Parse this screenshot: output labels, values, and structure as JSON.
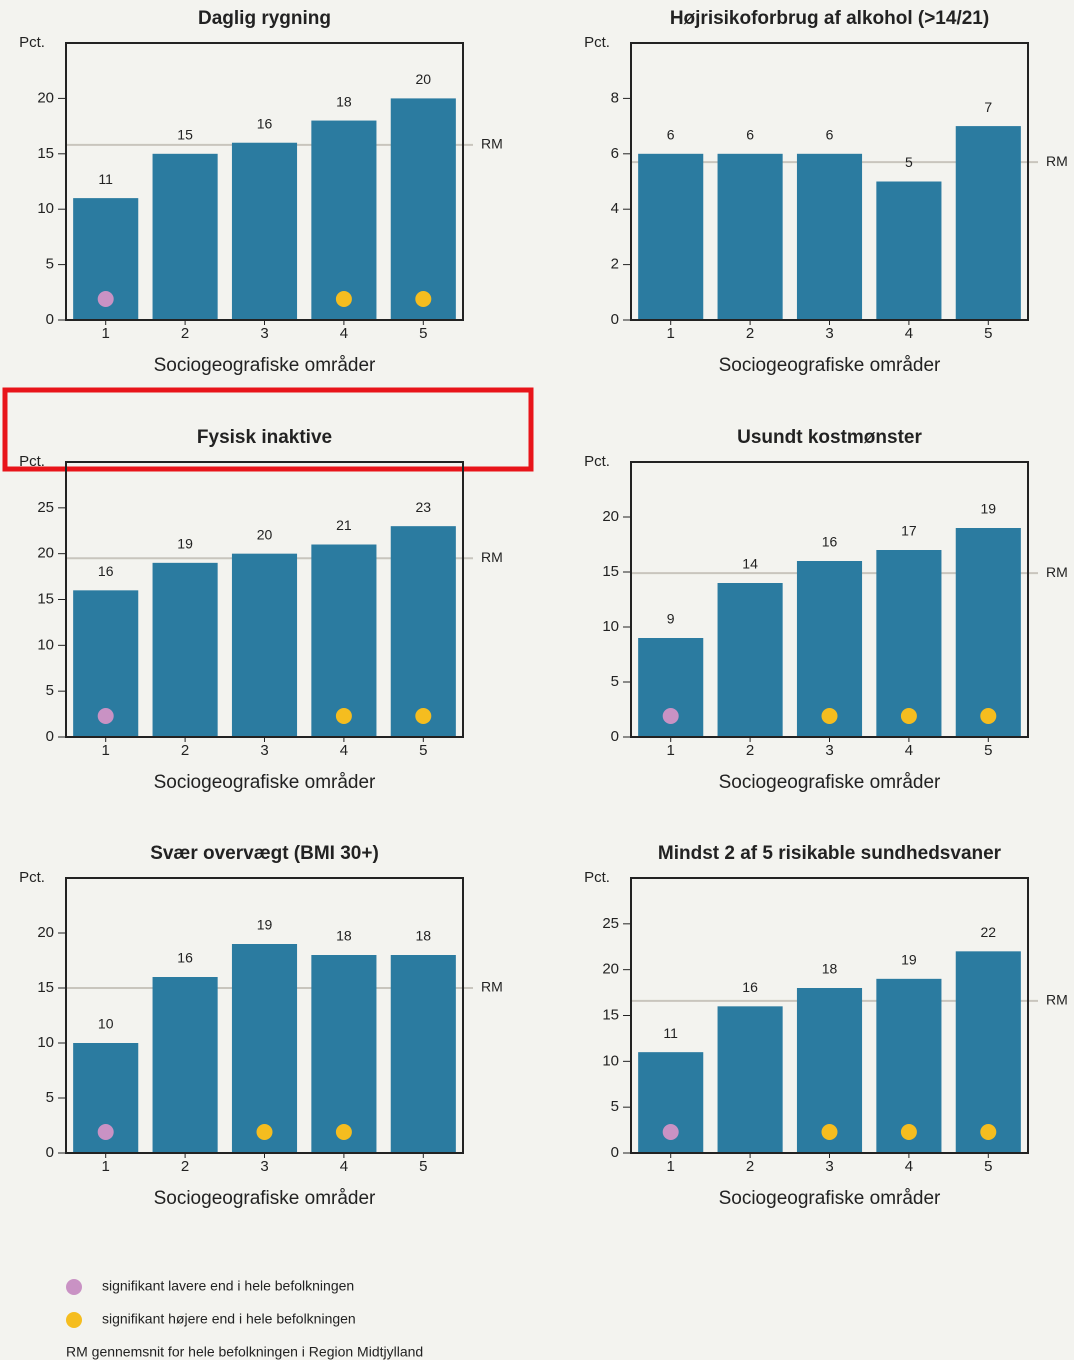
{
  "chart_data": [
    {
      "type": "bar",
      "title": "Daglig rygning",
      "ylabel": "Pct.",
      "xlabel": "Sociogeografiske områder",
      "categories": [
        "1",
        "2",
        "3",
        "4",
        "5"
      ],
      "values": [
        11,
        15,
        16,
        18,
        20
      ],
      "color": "#2b7ba0",
      "ylim": [
        0,
        25
      ],
      "yticks": [
        0,
        5,
        10,
        15,
        20
      ],
      "reference_line": {
        "value": 15.8,
        "label": "RM"
      },
      "marker_colors": [
        "#c992c4",
        null,
        null,
        "#f5bd1f",
        "#f5bd1f"
      ]
    },
    {
      "type": "bar",
      "title": "Højrisikoforbrug af alkohol (>14/21)",
      "ylabel": "Pct.",
      "xlabel": "Sociogeografiske områder",
      "categories": [
        "1",
        "2",
        "3",
        "4",
        "5"
      ],
      "values": [
        6,
        6,
        6,
        5,
        7
      ],
      "color": "#2b7ba0",
      "ylim": [
        0,
        10
      ],
      "yticks": [
        0,
        2,
        4,
        6,
        8
      ],
      "reference_line": {
        "value": 5.7,
        "label": "RM"
      },
      "marker_colors": [
        null,
        null,
        null,
        null,
        null
      ]
    },
    {
      "type": "bar",
      "title": "Fysisk inaktive",
      "ylabel": "Pct.",
      "xlabel": "Sociogeografiske områder",
      "categories": [
        "1",
        "2",
        "3",
        "4",
        "5"
      ],
      "values": [
        16,
        19,
        20,
        21,
        23
      ],
      "color": "#2b7ba0",
      "ylim": [
        0,
        30
      ],
      "yticks": [
        0,
        5,
        10,
        15,
        20,
        25
      ],
      "reference_line": {
        "value": 19.5,
        "label": "RM"
      },
      "marker_colors": [
        "#c992c4",
        null,
        null,
        "#f5bd1f",
        "#f5bd1f"
      ]
    },
    {
      "type": "bar",
      "title": "Usundt kostmønster",
      "ylabel": "Pct.",
      "xlabel": "Sociogeografiske områder",
      "categories": [
        "1",
        "2",
        "3",
        "4",
        "5"
      ],
      "values": [
        9,
        14,
        16,
        17,
        19
      ],
      "color": "#2b7ba0",
      "ylim": [
        0,
        25
      ],
      "yticks": [
        0,
        5,
        10,
        15,
        20
      ],
      "reference_line": {
        "value": 14.9,
        "label": "RM"
      },
      "marker_colors": [
        "#c992c4",
        null,
        "#f5bd1f",
        "#f5bd1f",
        "#f5bd1f"
      ]
    },
    {
      "type": "bar",
      "title": "Svær overvægt (BMI 30+)",
      "ylabel": "Pct.",
      "xlabel": "Sociogeografiske områder",
      "categories": [
        "1",
        "2",
        "3",
        "4",
        "5"
      ],
      "values": [
        10,
        16,
        19,
        18,
        18
      ],
      "color": "#2b7ba0",
      "ylim": [
        0,
        25
      ],
      "yticks": [
        0,
        5,
        10,
        15,
        20
      ],
      "reference_line": {
        "value": 15,
        "label": "RM"
      },
      "marker_colors": [
        "#c992c4",
        null,
        "#f5bd1f",
        "#f5bd1f",
        null
      ]
    },
    {
      "type": "bar",
      "title": "Mindst 2 af 5 risikable sundhedsvaner",
      "ylabel": "Pct.",
      "xlabel": "Sociogeografiske områder",
      "categories": [
        "1",
        "2",
        "3",
        "4",
        "5"
      ],
      "values": [
        11,
        16,
        18,
        19,
        22
      ],
      "color": "#2b7ba0",
      "ylim": [
        0,
        30
      ],
      "yticks": [
        0,
        5,
        10,
        15,
        20,
        25
      ],
      "reference_line": {
        "value": 16.6,
        "label": "RM"
      },
      "marker_colors": [
        "#c992c4",
        null,
        "#f5bd1f",
        "#f5bd1f",
        "#f5bd1f"
      ]
    }
  ],
  "legend": [
    {
      "color": "#c992c4",
      "label": "signifikant lavere end i hele befolkningen"
    },
    {
      "color": "#f5bd1f",
      "label": "signifikant højere end i hele befolkningen"
    },
    {
      "label": "RM  gennemsnit for hele befolkningen i Region Midtjylland"
    }
  ]
}
